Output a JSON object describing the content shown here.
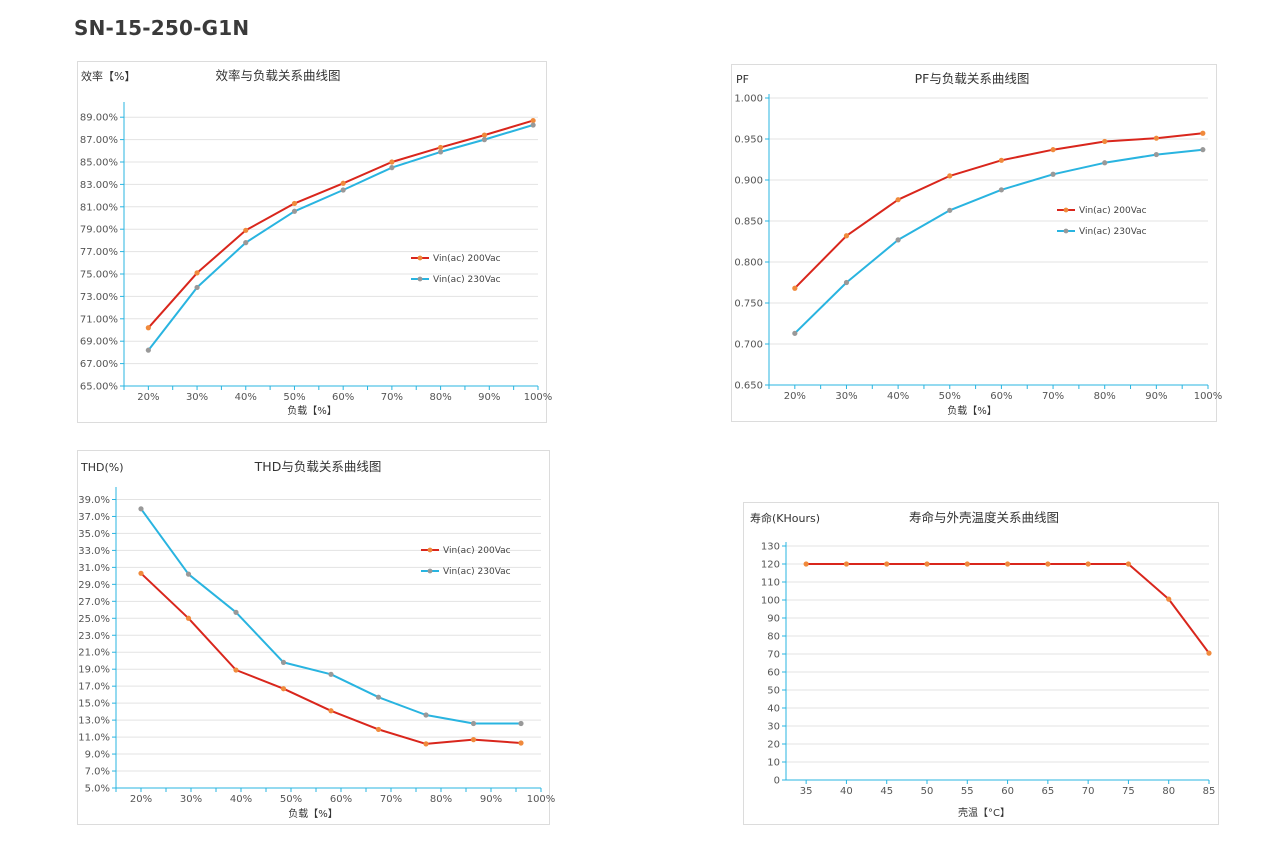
{
  "page": {
    "title": "SN-15-250-G1N"
  },
  "chart_data": [
    {
      "id": "efficiency",
      "type": "line",
      "title": "效率与负载关系曲线图",
      "ylabel": "效率【%】",
      "xlabel": "负载【%】",
      "categories": [
        "20%",
        "30%",
        "40%",
        "50%",
        "60%",
        "70%",
        "80%",
        "90%",
        "100%"
      ],
      "x": [
        20,
        30,
        40,
        50,
        60,
        70,
        80,
        90
      ],
      "xlim": [
        15,
        100
      ],
      "ylim": [
        65,
        90
      ],
      "yticks": [
        "65.00%",
        "67.00%",
        "69.00%",
        "71.00%",
        "73.00%",
        "75.00%",
        "77.00%",
        "79.00%",
        "81.00%",
        "83.00%",
        "85.00%",
        "87.00%",
        "89.00%"
      ],
      "ytick_values": [
        65,
        67,
        69,
        71,
        73,
        75,
        77,
        79,
        81,
        83,
        85,
        87,
        89
      ],
      "grid": true,
      "legend_position": "right",
      "series": [
        {
          "name": "Vin(ac) 200Vac",
          "color": "#d9261c",
          "marker": "#f08a3c",
          "xs": [
            20,
            30,
            40,
            50,
            60,
            70,
            80,
            89,
            99
          ],
          "values": [
            70.2,
            75.1,
            78.9,
            81.3,
            83.1,
            85.0,
            86.3,
            87.4,
            88.7
          ]
        },
        {
          "name": "Vin(ac) 230Vac",
          "color": "#29b4e0",
          "marker": "#999999",
          "xs": [
            20,
            30,
            40,
            50,
            60,
            70,
            80,
            89,
            99
          ],
          "values": [
            68.2,
            73.8,
            77.8,
            80.6,
            82.5,
            84.5,
            85.9,
            87.0,
            88.3
          ]
        }
      ]
    },
    {
      "id": "pf",
      "type": "line",
      "title": "PF与负载关系曲线图",
      "ylabel": "PF",
      "xlabel": "负载【%】",
      "categories": [
        "20%",
        "30%",
        "40%",
        "50%",
        "60%",
        "70%",
        "80%",
        "90%",
        "100%"
      ],
      "x": [
        20,
        30,
        40,
        50,
        60,
        70,
        80,
        90
      ],
      "xlim": [
        15,
        100
      ],
      "ylim": [
        0.65,
        1.0
      ],
      "yticks": [
        "0.650",
        "0.700",
        "0.750",
        "0.800",
        "0.850",
        "0.900",
        "0.950",
        "1.000"
      ],
      "ytick_values": [
        0.65,
        0.7,
        0.75,
        0.8,
        0.85,
        0.9,
        0.95,
        1.0
      ],
      "grid": true,
      "legend_position": "right",
      "series": [
        {
          "name": "Vin(ac) 200Vac",
          "color": "#d9261c",
          "marker": "#f08a3c",
          "xs": [
            20,
            30,
            40,
            50,
            60,
            70,
            80,
            90,
            99
          ],
          "values": [
            0.768,
            0.832,
            0.876,
            0.905,
            0.924,
            0.937,
            0.947,
            0.951,
            0.957
          ]
        },
        {
          "name": "Vin(ac) 230Vac",
          "color": "#29b4e0",
          "marker": "#999999",
          "xs": [
            20,
            30,
            40,
            50,
            60,
            70,
            80,
            90,
            99
          ],
          "values": [
            0.713,
            0.775,
            0.827,
            0.863,
            0.888,
            0.907,
            0.921,
            0.931,
            0.937
          ]
        }
      ]
    },
    {
      "id": "thd",
      "type": "line",
      "title": "THD与负载关系曲线图",
      "ylabel": "THD(%)",
      "xlabel": "负载【%】",
      "categories": [
        "20%",
        "30%",
        "40%",
        "50%",
        "60%",
        "70%",
        "80%",
        "90%",
        "100%"
      ],
      "x": [
        20,
        30,
        40,
        50,
        60,
        70,
        80,
        90
      ],
      "xlim": [
        15,
        100
      ],
      "ylim": [
        5,
        40
      ],
      "yticks": [
        "5.0%",
        "7.0%",
        "9.0%",
        "11.0%",
        "13.0%",
        "15.0%",
        "17.0%",
        "19.0%",
        "21.0%",
        "23.0%",
        "25.0%",
        "27.0%",
        "29.0%",
        "31.0%",
        "33.0%",
        "35.0%",
        "37.0%",
        "39.0%"
      ],
      "ytick_values": [
        5,
        7,
        9,
        11,
        13,
        15,
        17,
        19,
        21,
        23,
        25,
        27,
        29,
        31,
        33,
        35,
        37,
        39
      ],
      "grid": true,
      "legend_position": "top-right",
      "series": [
        {
          "name": "Vin(ac) 200Vac",
          "color": "#d9261c",
          "marker": "#f08a3c",
          "xs": [
            20,
            29.5,
            39,
            48.5,
            58,
            67.5,
            77,
            86.5,
            96
          ],
          "values": [
            30.3,
            25.0,
            18.9,
            16.7,
            14.1,
            11.9,
            10.2,
            10.7,
            10.3
          ]
        },
        {
          "name": "Vin(ac) 230Vac",
          "color": "#29b4e0",
          "marker": "#999999",
          "xs": [
            20,
            29.5,
            39,
            48.5,
            58,
            67.5,
            77,
            86.5,
            96
          ],
          "values": [
            37.9,
            30.2,
            25.7,
            19.8,
            18.4,
            15.7,
            13.6,
            12.6,
            12.6
          ]
        }
      ]
    },
    {
      "id": "life",
      "type": "line",
      "title": "寿命与外壳温度关系曲线图",
      "ylabel": "寿命(KHours)",
      "xlabel": "壳温【°C】",
      "categories": [
        "35",
        "40",
        "45",
        "50",
        "55",
        "60",
        "65",
        "70",
        "75",
        "80",
        "85"
      ],
      "x": [
        35,
        40,
        45,
        50,
        55,
        60,
        65,
        70,
        75,
        80,
        85
      ],
      "xlim": [
        32.5,
        85
      ],
      "ylim": [
        0,
        130
      ],
      "yticks": [
        "0",
        "10",
        "20",
        "30",
        "40",
        "50",
        "60",
        "70",
        "80",
        "90",
        "100",
        "110",
        "120",
        "130"
      ],
      "ytick_values": [
        0,
        10,
        20,
        30,
        40,
        50,
        60,
        70,
        80,
        90,
        100,
        110,
        120,
        130
      ],
      "grid": true,
      "series": [
        {
          "name": "",
          "color": "#d9261c",
          "marker": "#f08a3c",
          "xs": [
            35,
            40,
            45,
            50,
            55,
            60,
            65,
            70,
            75,
            80,
            85
          ],
          "values": [
            120,
            120,
            120,
            120,
            120,
            120,
            120,
            120,
            120,
            100.5,
            70.5
          ]
        }
      ]
    }
  ]
}
